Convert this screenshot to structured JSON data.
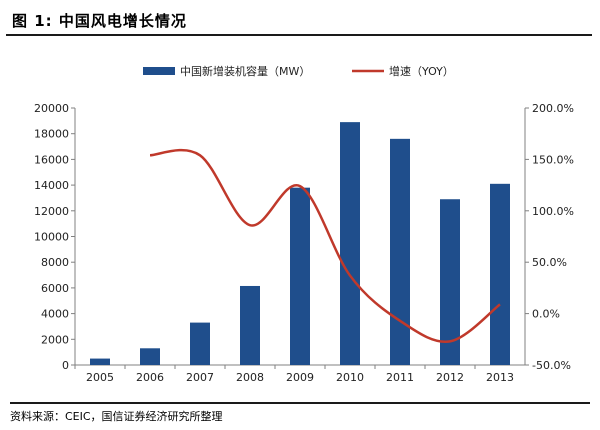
{
  "header": {
    "title": "图  1:  中国风电增长情况"
  },
  "footer": {
    "source": "资料来源：CEIC，国信证券经济研究所整理"
  },
  "colors": {
    "bar": "#1f4e8c",
    "line": "#c0392b",
    "axis": "#808080",
    "text": "#222222"
  },
  "chart_data": {
    "type": "bar",
    "categories": [
      "2005",
      "2006",
      "2007",
      "2008",
      "2009",
      "2010",
      "2011",
      "2012",
      "2013"
    ],
    "series": [
      {
        "name": "中国新增装机容量（MW）",
        "type": "bar",
        "axis": "left",
        "values": [
          500,
          1300,
          3300,
          6150,
          13800,
          18900,
          17600,
          12900,
          14100
        ]
      },
      {
        "name": "增速（YOY）",
        "type": "line",
        "axis": "right",
        "values": [
          null,
          1.54,
          1.54,
          0.86,
          1.24,
          0.37,
          -0.07,
          -0.27,
          0.09
        ]
      }
    ],
    "y_left": {
      "min": 0,
      "max": 20000,
      "ticks": [
        "0",
        "2000",
        "4000",
        "6000",
        "8000",
        "10000",
        "12000",
        "14000",
        "16000",
        "18000",
        "20000"
      ]
    },
    "y_right": {
      "min": -0.5,
      "max": 2.0,
      "ticks": [
        "-50.0%",
        "0.0%",
        "50.0%",
        "100.0%",
        "150.0%",
        "200.0%"
      ]
    },
    "legend_position": "top-center",
    "grid": false
  }
}
